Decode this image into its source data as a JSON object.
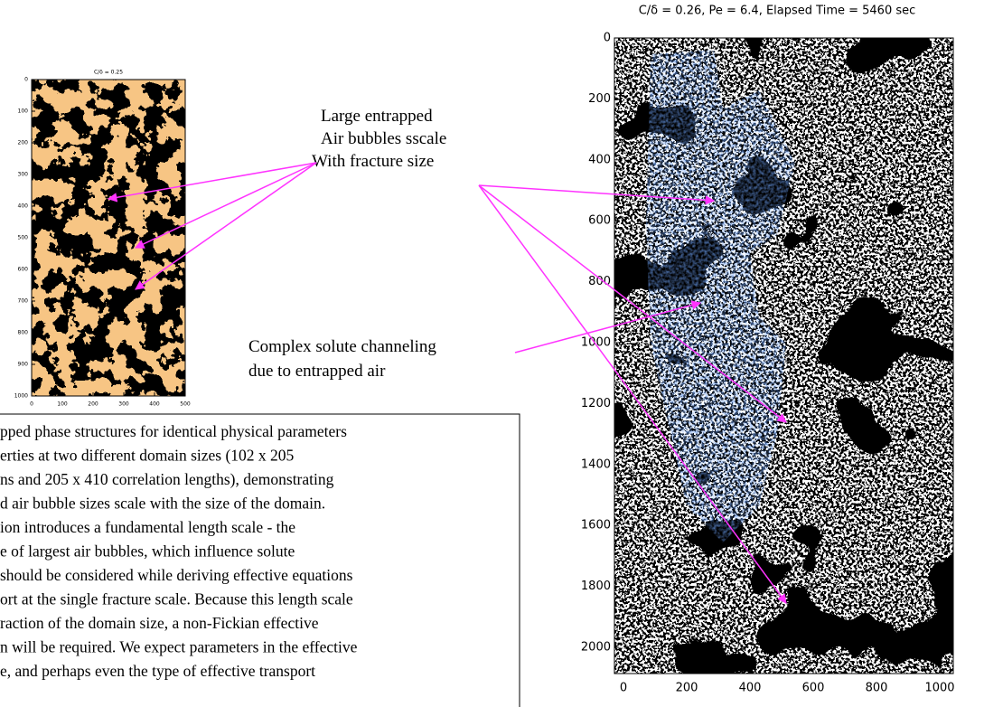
{
  "left_plot": {
    "title": "C/δ = 0.25",
    "yticks": [
      0,
      100,
      200,
      300,
      400,
      500,
      600,
      700,
      800,
      900,
      1000
    ],
    "xticks": [
      0,
      100,
      200,
      300,
      400,
      500
    ]
  },
  "right_plot": {
    "title": "C/δ = 0.26,  Pe = 6.4,  Elapsed Time =  5460 sec",
    "yticks": [
      0,
      200,
      400,
      600,
      800,
      1000,
      1200,
      1400,
      1600,
      1800,
      2000
    ],
    "xticks": [
      0,
      200,
      400,
      600,
      800,
      1000
    ]
  },
  "annotations": {
    "bubbles": [
      "Large entrapped",
      "Air bubbles sscale",
      "With fracture  size"
    ],
    "channeling": [
      "Complex solute channeling",
      "due to entrapped air"
    ]
  },
  "caption": {
    "lines": [
      "pped phase structures for identical physical parameters",
      "erties at two different domain sizes (102 x 205",
      "ns and 205 x 410 correlation lengths), demonstrating",
      "d air bubble sizes scale with the size of the domain.",
      "ion introduces a fundamental length scale - the",
      "e of largest air bubbles, which influence solute",
      "should be considered while deriving effective equations",
      "ort at the single fracture scale.  Because this length scale",
      "raction of the domain size, a non-Fickian effective",
      "n will be required. We expect parameters in the effective",
      "e, and perhaps even the type of effective transport"
    ]
  }
}
